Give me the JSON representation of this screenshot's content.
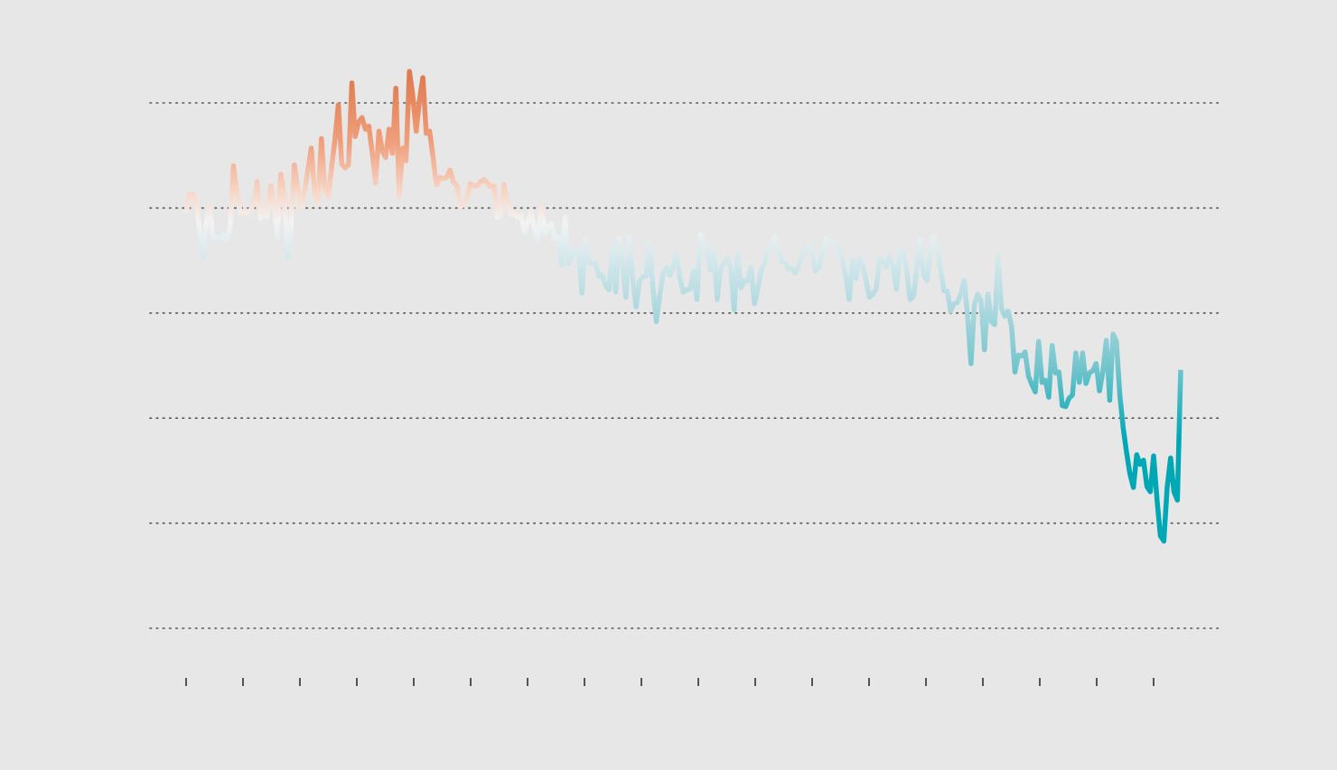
{
  "chart_data": {
    "type": "line",
    "title": "",
    "xlabel": "",
    "ylabel": "",
    "x_ticks_count": 18,
    "gridline_count": 6,
    "ylim": [
      -3.6,
      1.4
    ],
    "xlim": [
      -0.6,
      17.65
    ],
    "grid": "horizontal-dotted",
    "colors": {
      "background": "#e7e7e7",
      "warm": "#e07b4f",
      "neutral": "#f3f3f3",
      "cool": "#00a7b5",
      "grid": "#555555",
      "tick": "#222222"
    },
    "series": [
      {
        "values": [
          -0.05,
          0.13,
          0.13,
          0.05,
          -0.21,
          -0.46,
          -0.13,
          0.01,
          -0.3,
          -0.27,
          -0.29,
          -0.26,
          -0.31,
          -0.18,
          0.4,
          0.15,
          -0.04,
          -0.04,
          -0.05,
          -0.02,
          0.04,
          0.25,
          -0.1,
          -0.01,
          -0.09,
          0.21,
          0.04,
          -0.28,
          0.32,
          0.12,
          -0.47,
          -0.19,
          0.41,
          0.19,
          0.01,
          0.15,
          0.36,
          0.57,
          0.14,
          0.04,
          0.66,
          0.18,
          0.1,
          0.38,
          0.65,
          0.98,
          0.42,
          0.38,
          0.41,
          1.19,
          0.68,
          0.82,
          0.86,
          0.75,
          0.78,
          0.53,
          0.24,
          0.73,
          0.54,
          0.48,
          0.75,
          0.52,
          1.14,
          0.11,
          0.57,
          0.45,
          1.3,
          1.07,
          0.73,
          1.03,
          1.24,
          0.71,
          0.73,
          0.48,
          0.22,
          0.29,
          0.28,
          0.29,
          0.36,
          0.25,
          0.22,
          0.01,
          0.03,
          0.09,
          0.23,
          0.21,
          0.21,
          0.25,
          0.27,
          0.24,
          0.2,
          0.21,
          -0.09,
          -0.07,
          0.22,
          0.07,
          -0.06,
          -0.05,
          -0.09,
          -0.06,
          -0.23,
          -0.13,
          -0.03,
          -0.21,
          -0.31,
          0.03,
          -0.24,
          -0.18,
          -0.15,
          -0.29,
          -0.27,
          -0.54,
          -0.09,
          -0.53,
          -0.45,
          -0.39,
          -0.41,
          -0.81,
          -0.3,
          -0.51,
          -0.53,
          -0.52,
          -0.65,
          -0.64,
          -0.74,
          -0.78,
          -0.37,
          -0.8,
          -0.29,
          -0.51,
          -0.85,
          -0.27,
          -0.66,
          -0.94,
          -0.7,
          -0.65,
          -0.65,
          -0.33,
          -0.76,
          -1.08,
          -0.83,
          -0.62,
          -0.57,
          -0.64,
          -0.56,
          -0.44,
          -0.68,
          -0.8,
          -0.78,
          -0.77,
          -0.6,
          -0.87,
          -0.25,
          -0.32,
          -0.4,
          -0.59,
          -0.39,
          -0.87,
          -0.58,
          -0.52,
          -0.47,
          -0.56,
          -0.97,
          -0.43,
          -0.76,
          -0.69,
          -0.69,
          -0.56,
          -0.91,
          -0.77,
          -0.59,
          -0.53,
          -0.4,
          -0.36,
          -0.27,
          -0.38,
          -0.51,
          -0.51,
          -0.58,
          -0.58,
          -0.62,
          -0.56,
          -0.45,
          -0.42,
          -0.35,
          -0.4,
          -0.6,
          -0.57,
          -0.42,
          -0.29,
          -0.35,
          -0.33,
          -0.34,
          -0.41,
          -0.5,
          -0.65,
          -0.87,
          -0.5,
          -0.67,
          -0.48,
          -0.54,
          -0.69,
          -0.85,
          -0.82,
          -0.77,
          -0.48,
          -0.51,
          -0.56,
          -0.45,
          -0.56,
          -0.77,
          -0.4,
          -0.41,
          -0.6,
          -0.87,
          -0.84,
          -0.57,
          -0.3,
          -0.64,
          -0.69,
          -0.44,
          -0.28,
          -0.37,
          -0.58,
          -0.79,
          -0.79,
          -0.98,
          -0.91,
          -0.9,
          -0.82,
          -0.69,
          -1.03,
          -1.48,
          -0.92,
          -0.82,
          -0.89,
          -1.35,
          -0.82,
          -1.08,
          -1.11,
          -0.47,
          -0.95,
          -1.03,
          -0.98,
          -1.13,
          -1.56,
          -1.4,
          -1.41,
          -1.37,
          -1.6,
          -1.68,
          -1.75,
          -1.27,
          -1.66,
          -1.64,
          -1.8,
          -1.31,
          -1.57,
          -1.56,
          -1.88,
          -1.89,
          -1.81,
          -1.78,
          -1.38,
          -1.66,
          -1.38,
          -1.67,
          -1.57,
          -1.55,
          -1.48,
          -1.74,
          -1.55,
          -1.26,
          -1.83,
          -1.2,
          -1.27,
          -1.78,
          -2.09,
          -2.33,
          -2.53,
          -2.66,
          -2.35,
          -2.44,
          -2.4,
          -2.65,
          -2.7,
          -2.36,
          -2.78,
          -3.12,
          -3.17,
          -2.66,
          -2.38,
          -2.7,
          -2.78,
          -1.54
        ]
      }
    ]
  }
}
